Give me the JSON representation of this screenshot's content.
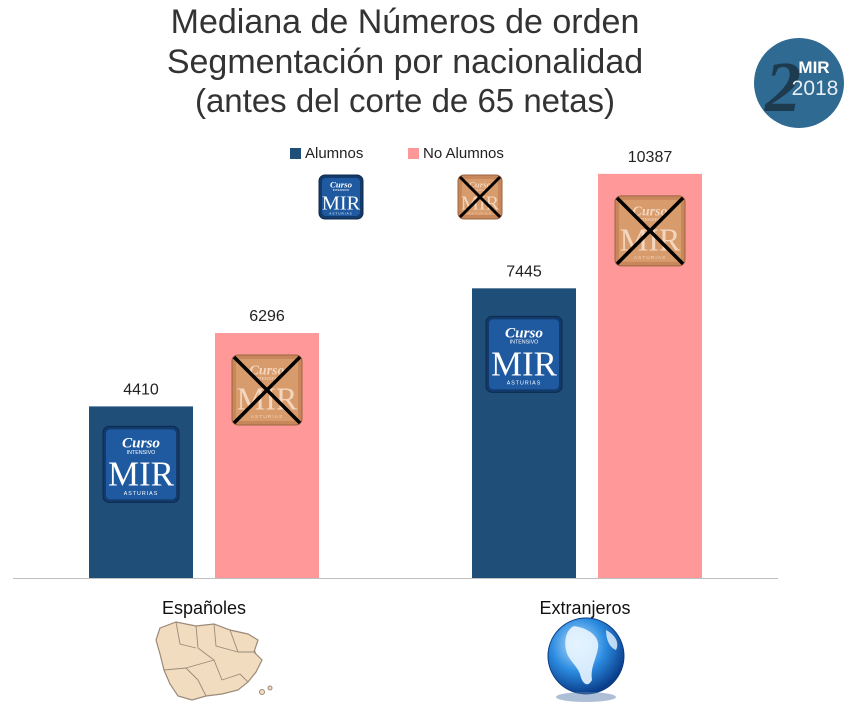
{
  "title_lines": [
    "Mediana de Números de orden",
    "Segmentación por nacionalidad",
    "(antes del corte de 65 netas)"
  ],
  "badge": {
    "top_text": "MIR",
    "year_text": "2018",
    "big_digit": "2",
    "color": "#2f6a92"
  },
  "logo": {
    "script_text": "Curso",
    "small_text": "INTENSIVO",
    "main_text": "MIR",
    "bottom_text": "ASTURIAS"
  },
  "chart_data": {
    "type": "bar",
    "categories": [
      "Españoles",
      "Extranjeros"
    ],
    "series": [
      {
        "name": "Alumnos",
        "values": [
          4410,
          7445
        ],
        "color": "#1f4e79",
        "logo_style": "normal"
      },
      {
        "name": "No Alumnos",
        "values": [
          6296,
          10387
        ],
        "color": "#ff9999",
        "logo_style": "crossed"
      }
    ],
    "ylim": [
      0,
      11000
    ],
    "grid": false,
    "legend": "top-center",
    "category_icons": [
      "spain-map-icon",
      "globe-icon"
    ]
  }
}
